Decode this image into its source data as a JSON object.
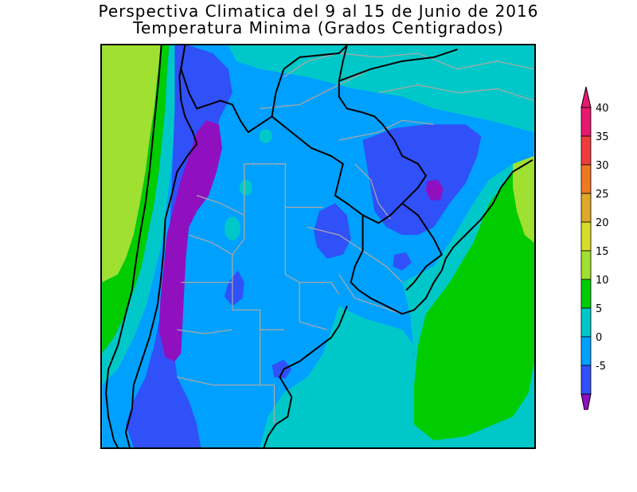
{
  "title": {
    "line1": "Perspectiva Climatica del 9 al 15 de Junio de 2016",
    "line2": "Temperatura Minima (Grados Centigrados)"
  },
  "colorbar": {
    "levels": [
      {
        "label": "40",
        "color": "#e8186e"
      },
      {
        "label": "35",
        "color": "#f03c3c"
      },
      {
        "label": "30",
        "color": "#f07820"
      },
      {
        "label": "25",
        "color": "#e0a828"
      },
      {
        "label": "20",
        "color": "#d8dc28"
      },
      {
        "label": "15",
        "color": "#a0e030"
      },
      {
        "label": "10",
        "color": "#00cc00"
      },
      {
        "label": "5",
        "color": "#00c8c8"
      },
      {
        "label": "0",
        "color": "#00a0ff"
      },
      {
        "label": "-5",
        "color": "#3050f8"
      }
    ],
    "top_color": "#e8186e",
    "bottom_color": "#9010c0"
  },
  "colors": {
    "green": "#00cc00",
    "lightgreen": "#a0e030",
    "cyan": "#00c8c8",
    "skyblue": "#00a0ff",
    "blue": "#3050f8",
    "purple": "#9010c0",
    "borders": "#a8a8a8",
    "coast": "#000000"
  }
}
